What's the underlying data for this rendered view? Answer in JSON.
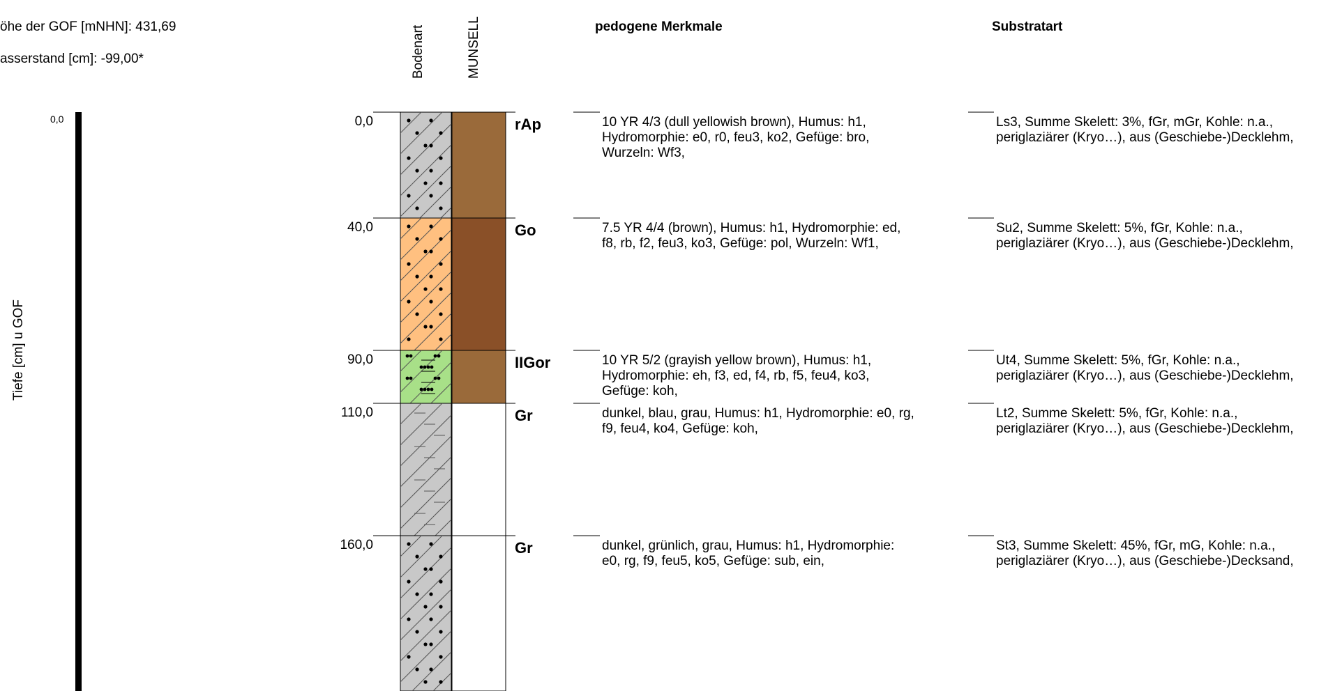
{
  "header": {
    "elevation": "öhe der GOF [mNHN]: 431,69",
    "groundwater": "asserstand [cm]: -99,00*"
  },
  "axis": {
    "label": "Tiefe [cm] u GOF",
    "start": "0,0"
  },
  "columns": {
    "bodenart": "Bodenart",
    "munsell": "MUNSELL",
    "pedogenic": "pedogene Merkmale",
    "substrate": "Substratart"
  },
  "layers": [
    {
      "depth": "0,0",
      "horizon": "rAp",
      "soil_pattern": "sand-dots",
      "soil_color": "#c8c8c8",
      "munsell_color": "#9a6a3a",
      "pedogenic": [
        "10 YR 4/3 (dull yellowish brown), Humus: h1,",
        "Hydromorphie: e0, r0, feu3, ko2, Gefüge: bro,",
        "Wurzeln: Wf3,"
      ],
      "substrate": [
        "Ls3, Summe Skelett: 3%, fGr, mGr, Kohle: n.a.,",
        "periglaziärer (Kryo…), aus (Geschiebe-)Decklehm,"
      ]
    },
    {
      "depth": "40,0",
      "horizon": "Go",
      "soil_pattern": "sand-dots",
      "soil_color": "#ffc080",
      "munsell_color": "#8a5028",
      "pedogenic": [
        "7.5 YR 4/4 (brown), Humus: h1, Hydromorphie: ed,",
        "f8, rb, f2, feu3, ko3, Gefüge: pol, Wurzeln: Wf1,"
      ],
      "substrate": [
        "Su2, Summe Skelett: 5%, fGr, Kohle: n.a.,",
        "periglaziärer (Kryo…), aus (Geschiebe-)Decklehm,"
      ]
    },
    {
      "depth": "90,0",
      "horizon": "IIGor",
      "soil_pattern": "silt-dots",
      "soil_color": "#a8e088",
      "munsell_color": "#9a6a3a",
      "pedogenic": [
        "10 YR 5/2 (grayish yellow brown), Humus: h1,",
        "Hydromorphie: eh, f3, ed, f4, rb, f5, feu4, ko3,",
        "Gefüge: koh,"
      ],
      "substrate": [
        "Ut4, Summe Skelett: 5%, fGr, Kohle: n.a.,",
        "periglaziärer (Kryo…), aus (Geschiebe-)Decklehm,"
      ]
    },
    {
      "depth": "110,0",
      "horizon": "Gr",
      "soil_pattern": "clay-dash",
      "soil_color": "#c8c8c8",
      "munsell_color": "#ffffff",
      "pedogenic": [
        "dunkel, blau, grau, Humus: h1, Hydromorphie: e0, rg,",
        "f9, feu4, ko4, Gefüge: koh,"
      ],
      "substrate": [
        "Lt2, Summe Skelett: 5%, fGr, Kohle: n.a.,",
        "periglaziärer (Kryo…), aus (Geschiebe-)Decklehm,"
      ]
    },
    {
      "depth": "160,0",
      "horizon": "Gr",
      "soil_pattern": "sand-dots",
      "soil_color": "#c8c8c8",
      "munsell_color": "#ffffff",
      "pedogenic": [
        "dunkel, grünlich, grau, Humus: h1, Hydromorphie:",
        "e0, rg, f9, feu5, ko5, Gefüge: sub, ein,"
      ],
      "substrate": [
        "St3, Summe Skelett: 45%, fGr, mG, Kohle: n.a.,",
        "periglaziärer (Kryo…), aus (Geschiebe-)Decksand,"
      ]
    }
  ]
}
